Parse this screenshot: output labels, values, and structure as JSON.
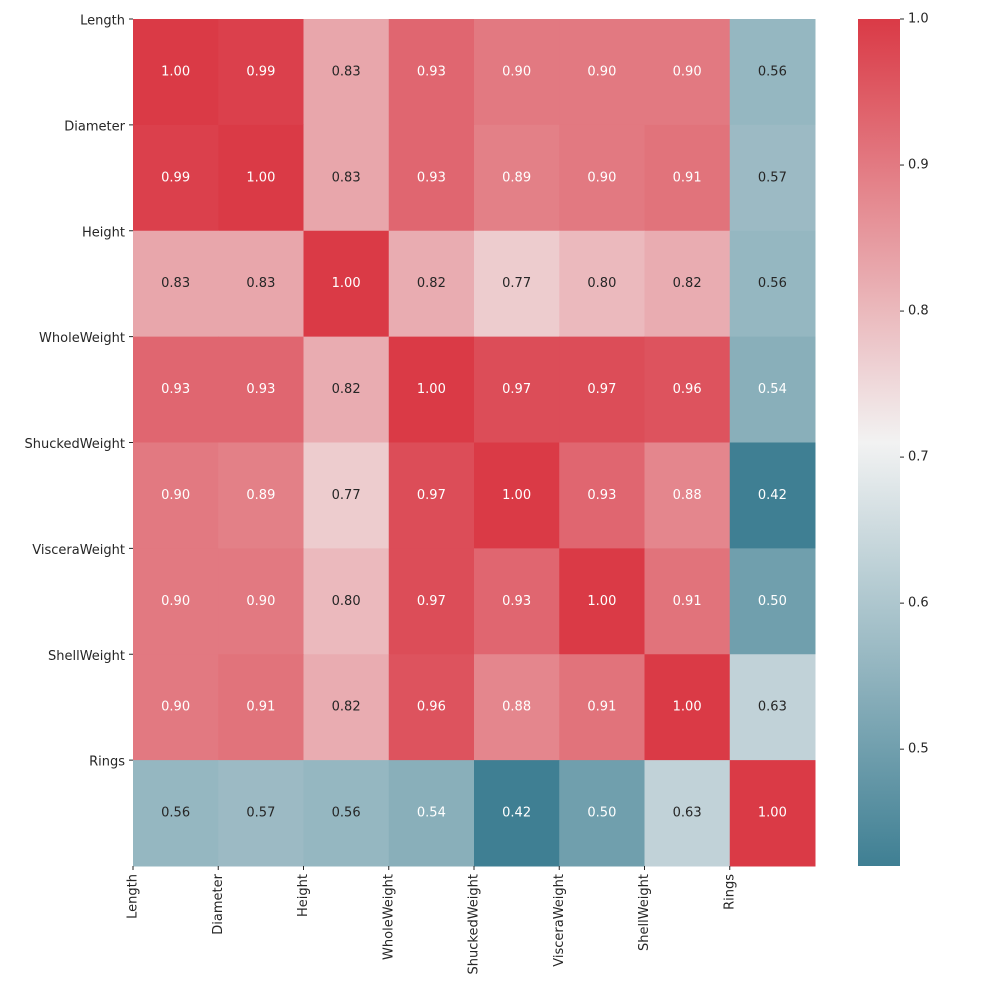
{
  "chart_data": {
    "type": "heatmap",
    "x": [
      "Length",
      "Diameter",
      "Height",
      "WholeWeight",
      "ShuckedWeight",
      "VisceraWeight",
      "ShellWeight",
      "Rings"
    ],
    "y": [
      "Length",
      "Diameter",
      "Height",
      "WholeWeight",
      "ShuckedWeight",
      "VisceraWeight",
      "ShellWeight",
      "Rings"
    ],
    "values": [
      [
        1,
        0.99,
        0.83,
        0.93,
        0.9,
        0.9,
        0.9,
        0.56
      ],
      [
        0.99,
        1,
        0.83,
        0.93,
        0.89,
        0.9,
        0.91,
        0.57
      ],
      [
        0.83,
        0.83,
        1,
        0.82,
        0.77,
        0.8,
        0.82,
        0.56
      ],
      [
        0.93,
        0.93,
        0.82,
        1,
        0.97,
        0.97,
        0.96,
        0.54
      ],
      [
        0.9,
        0.89,
        0.77,
        0.97,
        1,
        0.93,
        0.88,
        0.42
      ],
      [
        0.9,
        0.9,
        0.8,
        0.97,
        0.93,
        1,
        0.91,
        0.5
      ],
      [
        0.9,
        0.91,
        0.82,
        0.96,
        0.88,
        0.91,
        1,
        0.63
      ],
      [
        0.56,
        0.57,
        0.56,
        0.54,
        0.42,
        0.5,
        0.63,
        1
      ]
    ],
    "value_labels": [
      [
        "1.00",
        "0.99",
        "0.83",
        "0.93",
        "0.90",
        "0.90",
        "0.90",
        "0.56"
      ],
      [
        "0.99",
        "1.00",
        "0.83",
        "0.93",
        "0.89",
        "0.90",
        "0.91",
        "0.57"
      ],
      [
        "0.83",
        "0.83",
        "1.00",
        "0.82",
        "0.77",
        "0.80",
        "0.82",
        "0.56"
      ],
      [
        "0.93",
        "0.93",
        "0.82",
        "1.00",
        "0.97",
        "0.97",
        "0.96",
        "0.54"
      ],
      [
        "0.90",
        "0.89",
        "0.77",
        "0.97",
        "1.00",
        "0.93",
        "0.88",
        "0.42"
      ],
      [
        "0.90",
        "0.90",
        "0.80",
        "0.97",
        "0.93",
        "1.00",
        "0.91",
        "0.50"
      ],
      [
        "0.90",
        "0.91",
        "0.82",
        "0.96",
        "0.88",
        "0.91",
        "1.00",
        "0.63"
      ],
      [
        "0.56",
        "0.57",
        "0.56",
        "0.54",
        "0.42",
        "0.50",
        "0.63",
        "1.00"
      ]
    ],
    "colors": [
      "#3f7f93",
      "#f2f2f2",
      "#da3a46"
    ],
    "clim": [
      0.42,
      1
    ],
    "cticks": [
      0.5,
      0.6,
      0.7,
      0.8,
      0.9,
      {
        "value": 1,
        "label": "1.0"
      }
    ]
  }
}
